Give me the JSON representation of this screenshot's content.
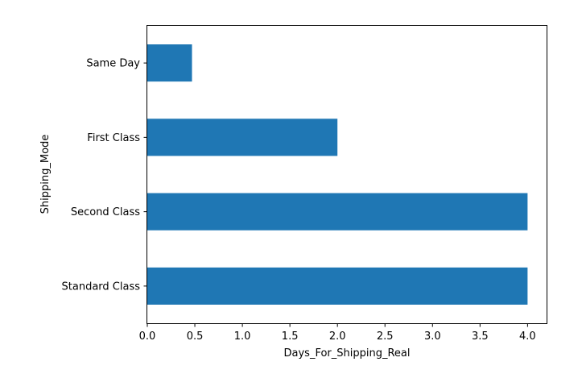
{
  "chart_data": {
    "type": "bar",
    "orientation": "horizontal",
    "title": "",
    "xlabel": "Days_For_Shipping_Real",
    "ylabel": "Shipping_Mode",
    "categories": [
      "Standard Class",
      "Second Class",
      "First Class",
      "Same Day"
    ],
    "values": [
      4.0,
      4.0,
      2.0,
      0.47
    ],
    "xlim": [
      0,
      4.2
    ],
    "xticks": [
      "0.0",
      "0.5",
      "1.0",
      "1.5",
      "2.0",
      "2.5",
      "3.0",
      "3.5",
      "4.0"
    ],
    "grid": false,
    "bar_color": "#1f77b4"
  }
}
